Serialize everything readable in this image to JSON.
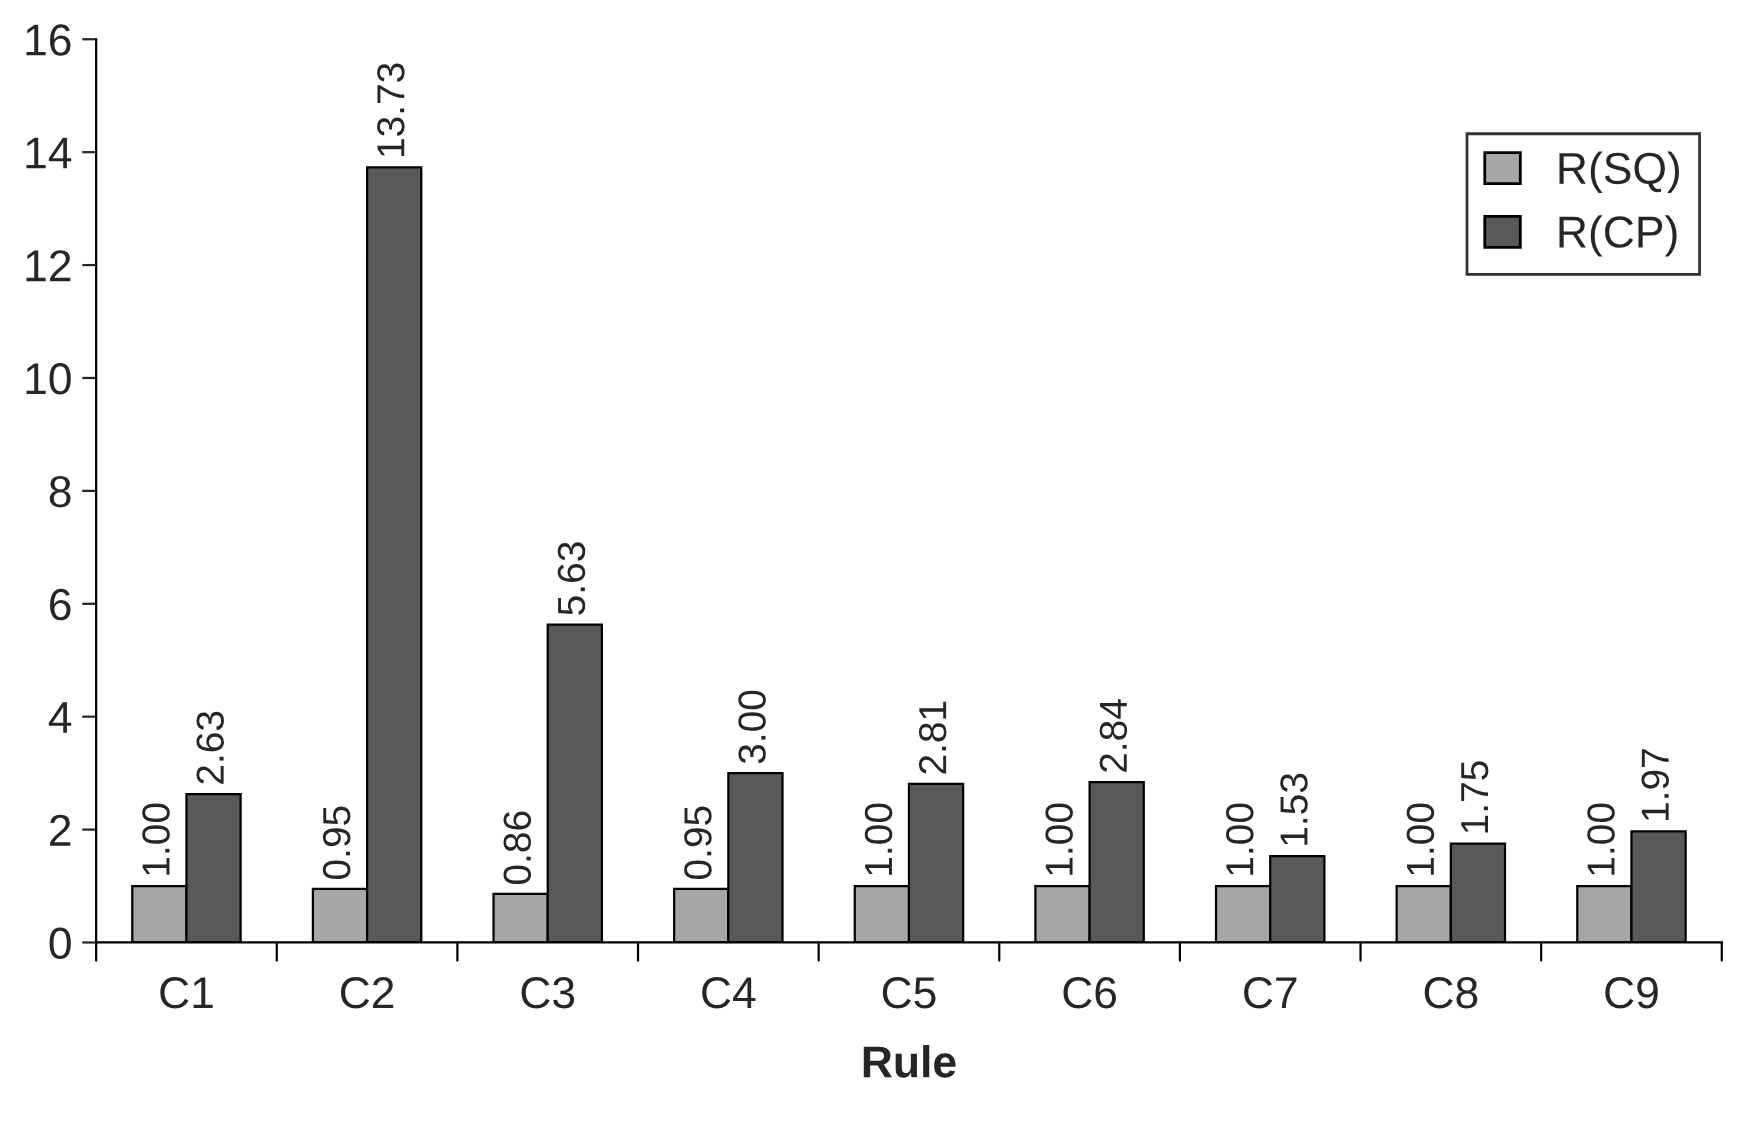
{
  "chart_data": {
    "type": "bar",
    "xlabel": "Rule",
    "categories": [
      "C1",
      "C2",
      "C3",
      "C4",
      "C5",
      "C6",
      "C7",
      "C8",
      "C9"
    ],
    "series": [
      {
        "name": "R(SQ)",
        "color": "#a6a6a6",
        "values": [
          1.0,
          0.95,
          0.86,
          0.95,
          1.0,
          1.0,
          1.0,
          1.0,
          1.0
        ],
        "value_labels": [
          "1.00",
          "0.95",
          "0.86",
          "0.95",
          "1.00",
          "1.00",
          "1.00",
          "1.00",
          "1.00"
        ]
      },
      {
        "name": "R(CP)",
        "color": "#595959",
        "values": [
          2.63,
          13.73,
          5.63,
          3.0,
          2.81,
          2.84,
          1.53,
          1.75,
          1.97
        ],
        "value_labels": [
          "2.63",
          "13.73",
          "5.63",
          "3.00",
          "2.81",
          "2.84",
          "1.53",
          "1.75",
          "1.97"
        ]
      }
    ],
    "ylim": [
      0,
      16
    ],
    "yticks": [
      0,
      2,
      4,
      6,
      8,
      10,
      12,
      14,
      16
    ],
    "grid": false,
    "legend": "top right"
  }
}
